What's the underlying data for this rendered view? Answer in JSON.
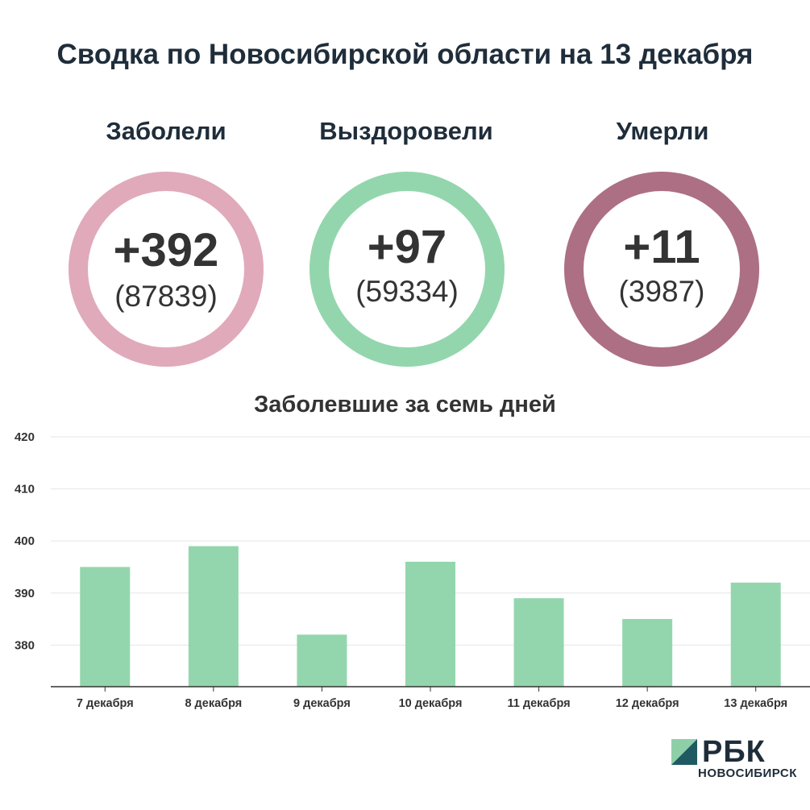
{
  "header": {
    "title": "Сводка по Новосибирской области на 13 декабря"
  },
  "stats": [
    {
      "label": "Заболели",
      "delta": "+392",
      "total": "(87839)",
      "color": "#e0aabb"
    },
    {
      "label": "Выздоровели",
      "delta": "+97",
      "total": "(59334)",
      "color": "#93d6ad"
    },
    {
      "label": "Умерли",
      "delta": "+11",
      "total": "(3987)",
      "color": "#ad6f84"
    }
  ],
  "chart_data": {
    "type": "bar",
    "title": "Заболевшие за семь дней",
    "categories": [
      "7 декабря",
      "8 декабря",
      "9 декабря",
      "10 декабря",
      "11 декабря",
      "12 декабря",
      "13 декабря"
    ],
    "values": [
      395,
      399,
      382,
      396,
      389,
      385,
      392
    ],
    "ylim": [
      372,
      420
    ],
    "yticks": [
      380,
      390,
      400,
      410,
      420
    ],
    "grid": true,
    "bar_color": "#93d6ad"
  },
  "brand": {
    "name": "РБК",
    "sub": "НОВОСИБИРСК",
    "mark_light": "#8ecfa8",
    "mark_dark": "#1f5a63"
  }
}
